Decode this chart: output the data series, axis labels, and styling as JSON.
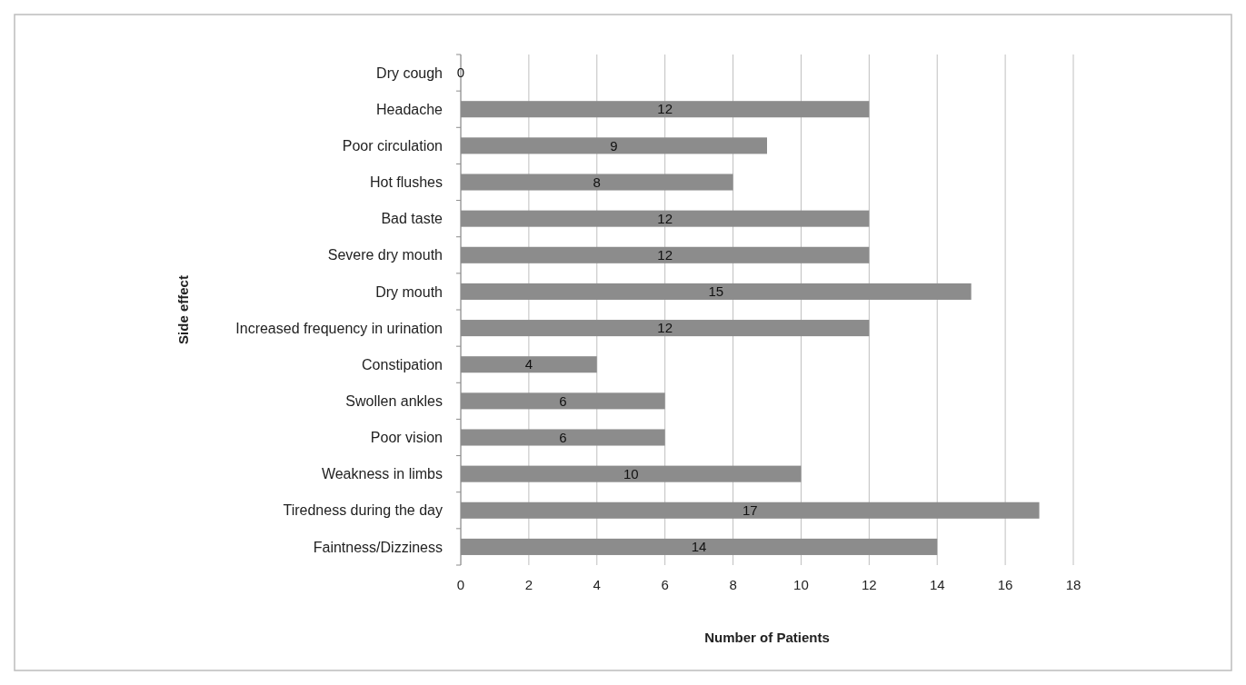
{
  "chart_data": {
    "type": "bar",
    "orientation": "horizontal",
    "xlabel": "Number of Patients",
    "ylabel": "Side effect",
    "categories": [
      "Dry cough",
      "Headache",
      "Poor circulation",
      "Hot flushes",
      "Bad taste",
      "Severe dry mouth",
      "Dry mouth",
      "Increased frequency in urination",
      "Constipation",
      "Swollen ankles",
      "Poor vision",
      "Weakness in limbs",
      "Tiredness during the day",
      "Faintness/Dizziness"
    ],
    "values": [
      0,
      12,
      9,
      8,
      12,
      12,
      15,
      12,
      4,
      6,
      6,
      10,
      17,
      14
    ],
    "color": "#8c8c8c",
    "xlim": [
      0,
      18
    ],
    "xticks": [
      0,
      2,
      4,
      6,
      8,
      10,
      12,
      14,
      16,
      18
    ],
    "grid": "x",
    "data_labels": true
  }
}
